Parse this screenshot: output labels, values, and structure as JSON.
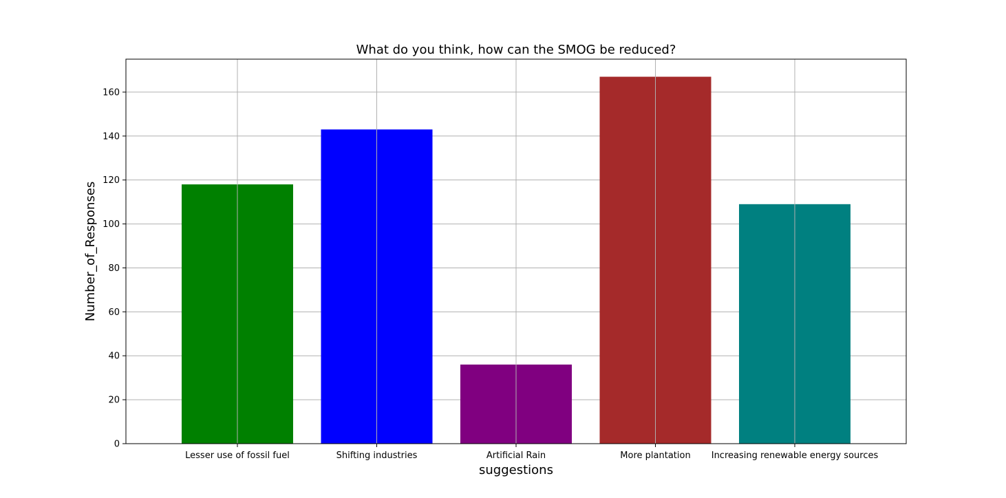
{
  "chart_data": {
    "type": "bar",
    "title": "What do you think, how can the SMOG be reduced?",
    "xlabel": "suggestions",
    "ylabel": "Number_of_Responses",
    "categories": [
      "Lesser use of fossil fuel",
      "Shifting industries",
      "Artificial Rain",
      "More plantation",
      "Increasing renewable energy sources"
    ],
    "values": [
      118,
      143,
      36,
      167,
      109
    ],
    "colors": [
      "#008000",
      "#0000ff",
      "#800080",
      "#a52a2a",
      "#008080"
    ],
    "ylim": [
      0,
      175
    ],
    "yticks": [
      0,
      20,
      40,
      60,
      80,
      100,
      120,
      140,
      160
    ],
    "grid": true
  }
}
